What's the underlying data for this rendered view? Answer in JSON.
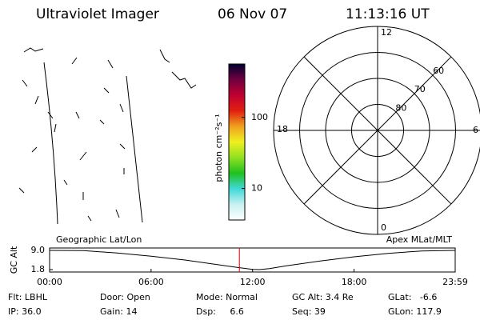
{
  "header": {
    "title": "Ultraviolet Imager",
    "date": "06 Nov 07",
    "time": "11:13:16 UT"
  },
  "colorbar": {
    "label": "photon cm⁻²s⁻¹",
    "log": true,
    "clim": [
      3.6,
      565
    ],
    "ticks": [
      10,
      100
    ],
    "colors": [
      "#ffffff",
      "#c8f0f0",
      "#40d8d8",
      "#20c020",
      "#90e020",
      "#f0f020",
      "#f0a020",
      "#e02010",
      "#c00030",
      "#700040",
      "#000030"
    ]
  },
  "polar": {
    "rlim": [
      90,
      50
    ],
    "rings": [
      60,
      70,
      80
    ],
    "mlt_labels": [
      "12",
      "6",
      "0",
      "18"
    ]
  },
  "chart_data": {
    "type": "line",
    "title_left": "Geographic Lat/Lon",
    "title_right": "Apex MLat/MLT",
    "ylabel": "GC Alt",
    "ylim": [
      1.8,
      9.0
    ],
    "yticks": [
      {
        "value": 9,
        "label": "9.0"
      },
      1.8
    ],
    "xlim": [
      0,
      23.98
    ],
    "xticks": [
      {
        "value": 0,
        "label": "00:00"
      },
      {
        "value": 6,
        "label": "06:00"
      },
      {
        "value": 12,
        "label": "12:00"
      },
      {
        "value": 18,
        "label": "18:00"
      },
      {
        "value": 23.98,
        "label": "23:59"
      }
    ],
    "x": [
      0,
      2,
      4,
      6,
      8,
      10,
      11,
      12,
      12.4,
      13,
      14,
      16,
      18,
      20,
      22,
      23.98
    ],
    "values": [
      9.0,
      8.9,
      8.0,
      6.8,
      5.4,
      3.6,
      2.7,
      1.9,
      1.8,
      2.2,
      3.2,
      5.0,
      6.6,
      7.9,
      8.8,
      9.0
    ],
    "color": "#000000",
    "marker_x": 11.22,
    "marker_color": "#e00000"
  },
  "status": {
    "rows": [
      [
        "Flt: LBHL",
        "Door: Open",
        "Mode: Normal",
        "GC Alt: 3.4 Re",
        "GLat:   -6.6"
      ],
      [
        "IP: 36.0",
        "Gain: 14",
        "Dsp:     6.6",
        "Seq: 39",
        "GLon: 117.9"
      ]
    ]
  }
}
